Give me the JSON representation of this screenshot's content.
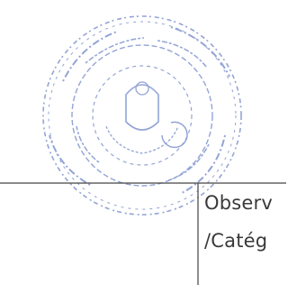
{
  "table": {
    "cell": {
      "lines": [
        "Observ",
        "/Catég"
      ]
    }
  }
}
